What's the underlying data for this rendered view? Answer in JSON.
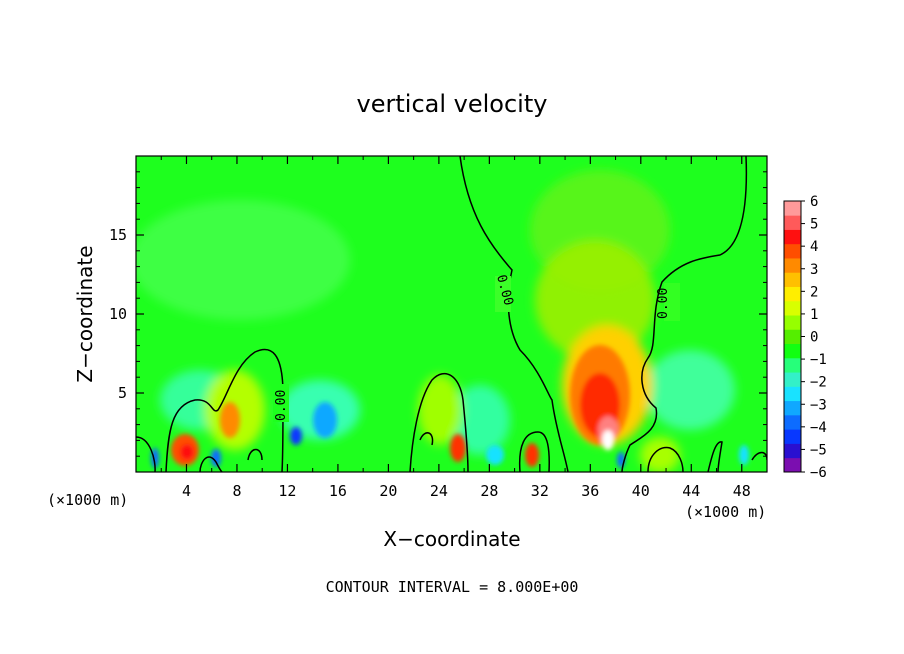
{
  "chart_data": {
    "type": "heatmap",
    "title": "vertical velocity",
    "xlabel": "X−coordinate",
    "ylabel": "Z−coordinate",
    "x_unit_left": "(×1000 m)",
    "x_unit_right": "(×1000 m)",
    "xlim": [
      0,
      50
    ],
    "ylim": [
      0,
      20
    ],
    "x_ticks": [
      4,
      8,
      12,
      16,
      20,
      24,
      28,
      32,
      36,
      40,
      44,
      48
    ],
    "y_ticks": [
      5,
      10,
      15
    ],
    "colorbar": {
      "ticks": [
        "6",
        "5",
        "4",
        "3",
        "2",
        "1",
        "0",
        "−1",
        "−2",
        "−3",
        "−4",
        "−5",
        "−6"
      ],
      "range": [
        -6,
        6
      ],
      "colors": [
        "#7b0eb0",
        "#2a10d0",
        "#0838ff",
        "#0d6cff",
        "#10a8ff",
        "#19e2ff",
        "#33f0c8",
        "#26ff7a",
        "#11ff11",
        "#55ee00",
        "#96ff00",
        "#d8ff00",
        "#ffee00",
        "#ffc000",
        "#ff8a00",
        "#ff4e00",
        "#ff1010",
        "#ff5a5a",
        "#ff9a9a"
      ]
    },
    "contour_level_label": "0.00",
    "footer": "CONTOUR INTERVAL = 8.000E+00"
  }
}
